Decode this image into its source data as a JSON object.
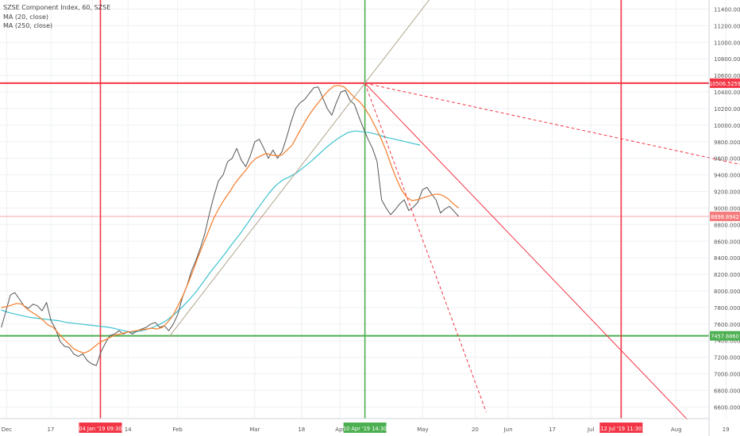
{
  "chart_data": {
    "type": "line",
    "legend": {
      "series_title": "SZSE Component Index, 60, SZSE",
      "ma_short": "MA (20, close)",
      "ma_long": "MA (250, close)"
    },
    "y_axis": {
      "ylim": [
        6460,
        11510
      ],
      "ticks": [
        "11400.0000",
        "11200.0000",
        "11000.0000",
        "10800.0000",
        "10600.0000",
        "10400.0000",
        "10200.0000",
        "10000.0000",
        "9800.0000",
        "9600.0000",
        "9400.0000",
        "9200.0000",
        "9000.0000",
        "8800.0000",
        "8600.0000",
        "8400.0000",
        "8200.0000",
        "8000.0000",
        "7800.0000",
        "7600.0000",
        "7400.0000",
        "7200.0000",
        "7000.0000",
        "6800.0000",
        "6600.0000"
      ]
    },
    "x_axis": {
      "ticks": [
        "Dec",
        "17",
        "Jan",
        "14",
        "Feb",
        "Mar",
        "18",
        "Apr",
        "May",
        "20",
        "Jun",
        "17",
        "Jul",
        "Aug",
        "19"
      ]
    },
    "colors": {
      "price": "#555555",
      "ma_short": "#f57c2a",
      "ma_long": "#3ec3cf",
      "red_lines": "#f23645",
      "green_lines": "#4caf50",
      "trend_line": "#b0a58c"
    },
    "price_labels": {
      "high": "10506.5259",
      "current": "8898.8942",
      "low": "7457.8860"
    },
    "date_labels": {
      "low_date": "04 Jan '19  09:30",
      "peak_date": "10 Apr '19  14:30",
      "target_date": "12 Jul '19  11:30"
    },
    "close_series": [
      7560,
      7750,
      7950,
      7980,
      7900,
      7820,
      7790,
      7840,
      7820,
      7760,
      7860,
      7640,
      7540,
      7390,
      7330,
      7320,
      7240,
      7210,
      7240,
      7160,
      7120,
      7100,
      7260,
      7370,
      7460,
      7480,
      7520,
      7480,
      7510,
      7480,
      7520,
      7540,
      7560,
      7600,
      7620,
      7560,
      7580,
      7520,
      7600,
      7720,
      7920,
      8060,
      8240,
      8370,
      8520,
      8700,
      8940,
      9150,
      9330,
      9400,
      9560,
      9600,
      9720,
      9580,
      9500,
      9630,
      9800,
      9830,
      9720,
      9600,
      9700,
      9600,
      9680,
      9850,
      10040,
      10200,
      10270,
      10310,
      10380,
      10450,
      10460,
      10330,
      10200,
      10120,
      10270,
      10400,
      10420,
      10300,
      10250,
      10100,
      9960,
      9830,
      9720,
      9560,
      9100,
      9000,
      8920,
      8980,
      9050,
      9100,
      8970,
      9010,
      9070,
      9220,
      9250,
      9170,
      9100,
      8940,
      8990,
      9020,
      8960,
      8899
    ],
    "ma20_series": [
      7800,
      7810,
      7830,
      7850,
      7840,
      7780,
      7740,
      7700,
      7650,
      7590,
      7560,
      7490,
      7420,
      7360,
      7300,
      7270,
      7250,
      7280,
      7330,
      7380,
      7410,
      7440,
      7470,
      7480,
      7500,
      7510,
      7520,
      7530,
      7540,
      7550,
      7540,
      7560,
      7620,
      7700,
      7820,
      7950,
      8100,
      8260,
      8430,
      8580,
      8740,
      8890,
      9010,
      9110,
      9200,
      9300,
      9380,
      9450,
      9540,
      9600,
      9630,
      9660,
      9640,
      9630,
      9640,
      9700,
      9760,
      9880,
      9990,
      10100,
      10190,
      10270,
      10350,
      10420,
      10470,
      10480,
      10460,
      10400,
      10330,
      10280,
      10200,
      10100,
      9980,
      9850,
      9700,
      9520,
      9360,
      9220,
      9130,
      9090,
      9100,
      9120,
      9140,
      9160,
      9170,
      9150,
      9110,
      9050,
      9000
    ],
    "ma250_series": [
      7770,
      7740,
      7720,
      7700,
      7680,
      7670,
      7660,
      7650,
      7640,
      7620,
      7610,
      7600,
      7590,
      7580,
      7570,
      7560,
      7540,
      7520,
      7500,
      7510,
      7530,
      7560,
      7600,
      7650,
      7720,
      7800,
      7890,
      7990,
      8110,
      8230,
      8340,
      8450,
      8570,
      8680,
      8800,
      8930,
      9050,
      9170,
      9270,
      9340,
      9380,
      9430,
      9500,
      9570,
      9650,
      9730,
      9800,
      9860,
      9910,
      9930,
      9920,
      9910,
      9890,
      9860,
      9840,
      9820,
      9800,
      9780,
      9760
    ],
    "trend_lines": [
      {
        "style": "solid",
        "from": [
          "Jan 29",
          "7450"
        ],
        "to": [
          "Apr 10",
          "10506"
        ]
      },
      {
        "style": "solid",
        "from": [
          "Apr 10",
          "10506"
        ],
        "to": [
          "Aug 05",
          "6450"
        ]
      },
      {
        "style": "dashed",
        "from": [
          "Apr 10",
          "10506"
        ],
        "to": [
          "Aug 25",
          "9520"
        ]
      },
      {
        "style": "dashed",
        "from": [
          "Apr 10",
          "10506"
        ],
        "to": [
          "May 24",
          "6540"
        ]
      }
    ]
  }
}
